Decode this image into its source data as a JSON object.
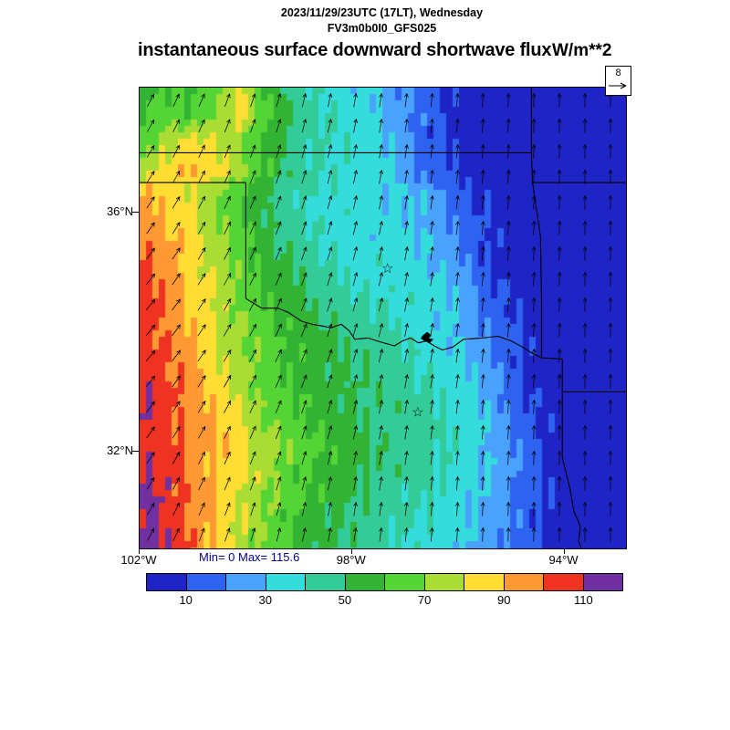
{
  "header": {
    "datetime": "2023/11/29/23UTC (17LT), Wednesday",
    "model": "FV3m0b0I0_GFS025"
  },
  "title": "instantaneous surface downward shortwave flux",
  "units": "W/m**2",
  "wind_ref": {
    "value": "8"
  },
  "annotation": {
    "minmax": "Min= 0 Max= 115.6",
    "color": "#00008b"
  },
  "chart_data": {
    "type": "heatmap",
    "title": "instantaneous surface downward shortwave flux",
    "units": "W/m**2",
    "min": 0,
    "max": 115.6,
    "extent": {
      "lon_left": 102.0,
      "lon_right": 92.84,
      "lat_top": 38.09,
      "lat_bottom": 30.38
    },
    "lat_ticks": [
      {
        "label": "36°N",
        "lat": 36
      },
      {
        "label": "32°N",
        "lat": 32
      }
    ],
    "lon_ticks": [
      {
        "label": "102°W",
        "lon": 102
      },
      {
        "label": "98°W",
        "lon": 98
      },
      {
        "label": "94°W",
        "lon": 94
      }
    ],
    "colorbar": {
      "bin_size": 10,
      "tick_labels": [
        "10",
        "30",
        "50",
        "70",
        "90",
        "110"
      ],
      "colors": [
        "#1f24c7",
        "#2e62f0",
        "#4aa2ff",
        "#35dcdc",
        "#33cc99",
        "#33b333",
        "#55d435",
        "#aadd33",
        "#ffdd33",
        "#ff9933",
        "#ee3322",
        "#7030a0"
      ]
    },
    "noise_amp": 5,
    "grid": {
      "values": [
        [
          55,
          62,
          58,
          70,
          82,
          55,
          45,
          40,
          35,
          33,
          22,
          14,
          8,
          4,
          2,
          1,
          0,
          0,
          0,
          0
        ],
        [
          58,
          65,
          60,
          72,
          85,
          60,
          48,
          42,
          36,
          33,
          24,
          15,
          8,
          4,
          2,
          1,
          0,
          0,
          0,
          0
        ],
        [
          65,
          75,
          85,
          80,
          70,
          55,
          45,
          40,
          36,
          34,
          26,
          16,
          9,
          5,
          2,
          1,
          0,
          0,
          0,
          0
        ],
        [
          72,
          85,
          92,
          85,
          72,
          58,
          46,
          42,
          38,
          35,
          28,
          18,
          10,
          5,
          2,
          1,
          0,
          0,
          0,
          0
        ],
        [
          95,
          88,
          78,
          68,
          60,
          50,
          42,
          38,
          36,
          34,
          33,
          28,
          18,
          10,
          5,
          2,
          1,
          0,
          0,
          0
        ],
        [
          100,
          92,
          82,
          72,
          62,
          52,
          44,
          38,
          35,
          34,
          33,
          30,
          20,
          12,
          6,
          3,
          1,
          0,
          0,
          0
        ],
        [
          102,
          95,
          85,
          75,
          65,
          55,
          46,
          40,
          36,
          35,
          34,
          32,
          24,
          14,
          7,
          3,
          1,
          0,
          0,
          0
        ],
        [
          105,
          97,
          87,
          77,
          66,
          57,
          50,
          44,
          40,
          38,
          36,
          33,
          28,
          18,
          9,
          4,
          2,
          0,
          0,
          0
        ],
        [
          107,
          99,
          89,
          79,
          68,
          60,
          54,
          48,
          44,
          42,
          38,
          34,
          30,
          22,
          12,
          5,
          2,
          1,
          0,
          0
        ],
        [
          108,
          100,
          90,
          80,
          70,
          62,
          56,
          52,
          48,
          45,
          42,
          36,
          32,
          25,
          15,
          7,
          3,
          1,
          0,
          0
        ],
        [
          109,
          101,
          92,
          82,
          72,
          64,
          58,
          54,
          50,
          47,
          44,
          40,
          35,
          28,
          18,
          9,
          4,
          1,
          0,
          0
        ],
        [
          110,
          103,
          95,
          86,
          76,
          66,
          60,
          56,
          52,
          48,
          45,
          42,
          37,
          30,
          20,
          10,
          4,
          2,
          0,
          0
        ],
        [
          111,
          105,
          98,
          90,
          80,
          70,
          62,
          57,
          53,
          49,
          46,
          43,
          38,
          32,
          22,
          12,
          5,
          2,
          0,
          0
        ],
        [
          110,
          104,
          97,
          90,
          83,
          74,
          66,
          60,
          55,
          50,
          47,
          44,
          40,
          34,
          25,
          14,
          6,
          2,
          1,
          0
        ],
        [
          109,
          106,
          98,
          90,
          82,
          73,
          64,
          58,
          53,
          49,
          46,
          43,
          39,
          33,
          26,
          15,
          7,
          3,
          1,
          0
        ],
        [
          114,
          108,
          99,
          89,
          79,
          70,
          62,
          56,
          51,
          47,
          44,
          41,
          37,
          31,
          24,
          14,
          7,
          3,
          1,
          0
        ],
        [
          115,
          110,
          100,
          88,
          77,
          68,
          60,
          54,
          49,
          45,
          42,
          39,
          35,
          29,
          22,
          13,
          6,
          2,
          1,
          0
        ],
        [
          115,
          111,
          100,
          87,
          75,
          66,
          58,
          52,
          47,
          43,
          40,
          37,
          33,
          27,
          20,
          12,
          5,
          2,
          0,
          0
        ]
      ]
    },
    "wind": {
      "ref_value": 8,
      "spacing": 28,
      "length": 15,
      "angles": [
        [
          28,
          22,
          16,
          10,
          6,
          3,
          1,
          0
        ],
        [
          32,
          25,
          18,
          12,
          8,
          4,
          1,
          0
        ],
        [
          36,
          28,
          21,
          14,
          9,
          5,
          2,
          0
        ],
        [
          40,
          32,
          24,
          16,
          10,
          6,
          2,
          0
        ],
        [
          42,
          34,
          26,
          17,
          11,
          6,
          2,
          0
        ],
        [
          38,
          30,
          22,
          14,
          9,
          5,
          2,
          0
        ],
        [
          33,
          25,
          17,
          11,
          7,
          3,
          1,
          0
        ],
        [
          28,
          20,
          13,
          8,
          5,
          2,
          1,
          0
        ]
      ]
    },
    "borders": [
      [
        [
          102,
          37
        ],
        [
          94.62,
          37
        ]
      ],
      [
        [
          94.62,
          38.09
        ],
        [
          94.62,
          37
        ]
      ],
      [
        [
          102,
          36.5
        ],
        [
          100,
          36.5
        ]
      ],
      [
        [
          100,
          36.5
        ],
        [
          100,
          34.56
        ]
      ],
      [
        [
          100,
          34.56
        ],
        [
          99.7,
          34.4
        ],
        [
          99.4,
          34.4
        ],
        [
          99.2,
          34.33
        ],
        [
          98.95,
          34.18
        ],
        [
          98.75,
          34.13
        ],
        [
          98.55,
          34.1
        ],
        [
          98.4,
          34.07
        ],
        [
          98.2,
          34.13
        ],
        [
          98.05,
          34.02
        ],
        [
          97.95,
          33.88
        ],
        [
          97.7,
          33.9
        ],
        [
          97.45,
          33.83
        ],
        [
          97.2,
          33.77
        ],
        [
          97.05,
          33.85
        ],
        [
          96.9,
          33.9
        ],
        [
          96.75,
          33.82
        ],
        [
          96.6,
          33.85
        ],
        [
          96.45,
          33.77
        ],
        [
          96.3,
          33.7
        ],
        [
          96.1,
          33.75
        ],
        [
          95.9,
          33.88
        ],
        [
          95.55,
          33.9
        ],
        [
          95.25,
          33.93
        ],
        [
          95.0,
          33.85
        ],
        [
          94.75,
          33.73
        ],
        [
          94.62,
          33.65
        ],
        [
          94.43,
          33.57
        ],
        [
          94.04,
          33.55
        ]
      ],
      [
        [
          94.62,
          37
        ],
        [
          94.6,
          36.5
        ],
        [
          94.45,
          35.6
        ],
        [
          94.43,
          34.5
        ],
        [
          94.43,
          33.57
        ]
      ],
      [
        [
          94.04,
          33.55
        ],
        [
          94.04,
          31.9
        ],
        [
          93.9,
          31.4
        ],
        [
          93.82,
          31.0
        ],
        [
          93.7,
          30.75
        ],
        [
          93.73,
          30.5
        ],
        [
          93.68,
          30.38
        ]
      ],
      [
        [
          94.04,
          33.0
        ],
        [
          92.84,
          33.0
        ]
      ],
      [
        [
          94.62,
          36.5
        ],
        [
          92.84,
          36.5
        ]
      ]
    ],
    "stars": [
      {
        "lon": 97.33,
        "lat": 35.07
      },
      {
        "lon": 96.76,
        "lat": 32.66
      }
    ],
    "star_glyph": "☆",
    "lake_blob": {
      "lon": 96.67,
      "lat": 33.94,
      "outline": [
        [
          0,
          0
        ],
        [
          5,
          -4
        ],
        [
          9,
          -1
        ],
        [
          7,
          3
        ],
        [
          12,
          4
        ],
        [
          8,
          8
        ],
        [
          2,
          6
        ],
        [
          -2,
          3
        ]
      ]
    }
  }
}
